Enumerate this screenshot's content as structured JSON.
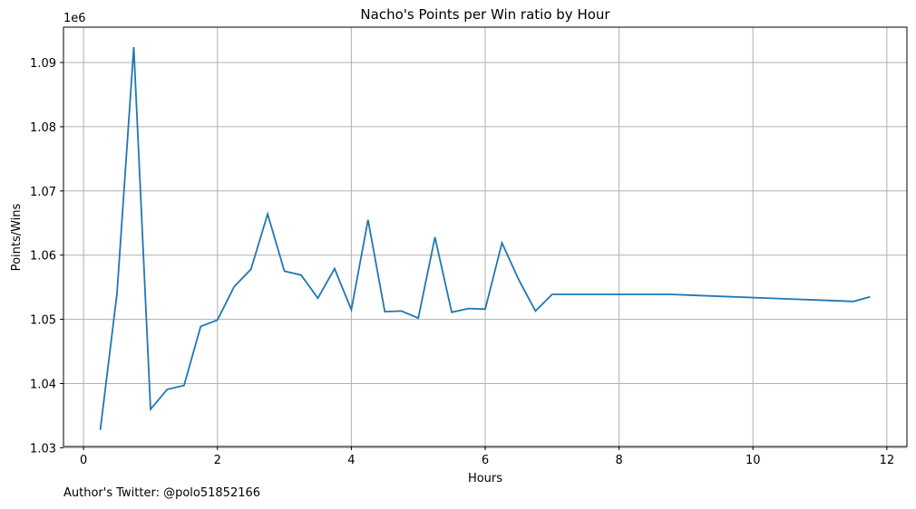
{
  "chart_data": {
    "type": "line",
    "title": "Nacho's Points per Win ratio by Hour",
    "xlabel": "Hours",
    "ylabel": "Points/Wins",
    "y_offset_label": "1e6",
    "xlim": [
      -0.3,
      12.3
    ],
    "ylim": [
      1.0302,
      1.0955
    ],
    "x_ticks": [
      0,
      2,
      4,
      6,
      8,
      10,
      12
    ],
    "x_tick_labels": [
      "0",
      "2",
      "4",
      "6",
      "8",
      "10",
      "12"
    ],
    "y_ticks": [
      1.03,
      1.04,
      1.05,
      1.06,
      1.07,
      1.08,
      1.09
    ],
    "y_tick_labels": [
      "1.03",
      "1.04",
      "1.05",
      "1.06",
      "1.07",
      "1.08",
      "1.09"
    ],
    "grid": true,
    "series": [
      {
        "color": "#1f77b4",
        "x": [
          0.25,
          0.5,
          0.75,
          1.0,
          1.25,
          1.5,
          1.75,
          2.0,
          2.25,
          2.5,
          2.75,
          3.0,
          3.25,
          3.5,
          3.75,
          4.0,
          4.25,
          4.5,
          4.75,
          5.0,
          5.25,
          5.5,
          5.75,
          6.0,
          6.25,
          6.5,
          6.75,
          7.0,
          8.75,
          11.5,
          11.75
        ],
        "y": [
          1.0328,
          1.054,
          1.0924,
          1.036,
          1.0391,
          1.0397,
          1.0489,
          1.0499,
          1.0551,
          1.0578,
          1.0664,
          1.0575,
          1.0569,
          1.0533,
          1.0579,
          1.0515,
          1.0655,
          1.0512,
          1.0513,
          1.0502,
          1.0628,
          1.0511,
          1.0517,
          1.0516,
          1.0619,
          1.0562,
          1.0513,
          1.0539,
          1.0539,
          1.0528,
          1.0535
        ]
      }
    ]
  },
  "footnote": "Author's Twitter: @polo51852166"
}
